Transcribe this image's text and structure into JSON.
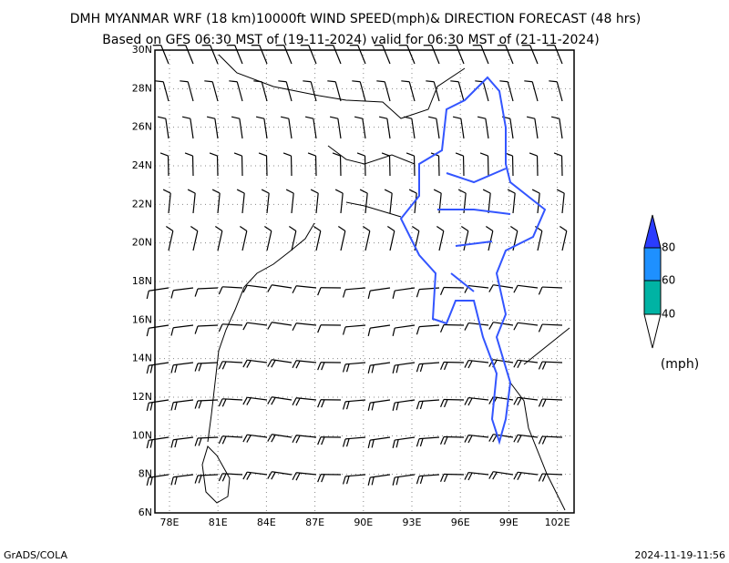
{
  "header": {
    "title": "DMH MYANMAR WRF (18 km)10000ft WIND SPEED(mph)& DIRECTION FORECAST (48 hrs)",
    "subtitle": "Based on GFS 06:30 MST of (19-11-2024) valid for 06:30 MST of (21-11-2024)"
  },
  "map": {
    "lat_labels": [
      "30N",
      "28N",
      "26N",
      "24N",
      "22N",
      "20N",
      "18N",
      "16N",
      "14N",
      "12N",
      "10N",
      "8N",
      "6N"
    ],
    "lon_labels": [
      "78E",
      "81E",
      "84E",
      "87E",
      "90E",
      "93E",
      "96E",
      "99E",
      "102E"
    ]
  },
  "legend": {
    "labels": [
      "80",
      "60",
      "40"
    ],
    "unit": "(mph)"
  },
  "footer": {
    "left": "GrADS/COLA",
    "right": "2024-11-19-11:56"
  }
}
